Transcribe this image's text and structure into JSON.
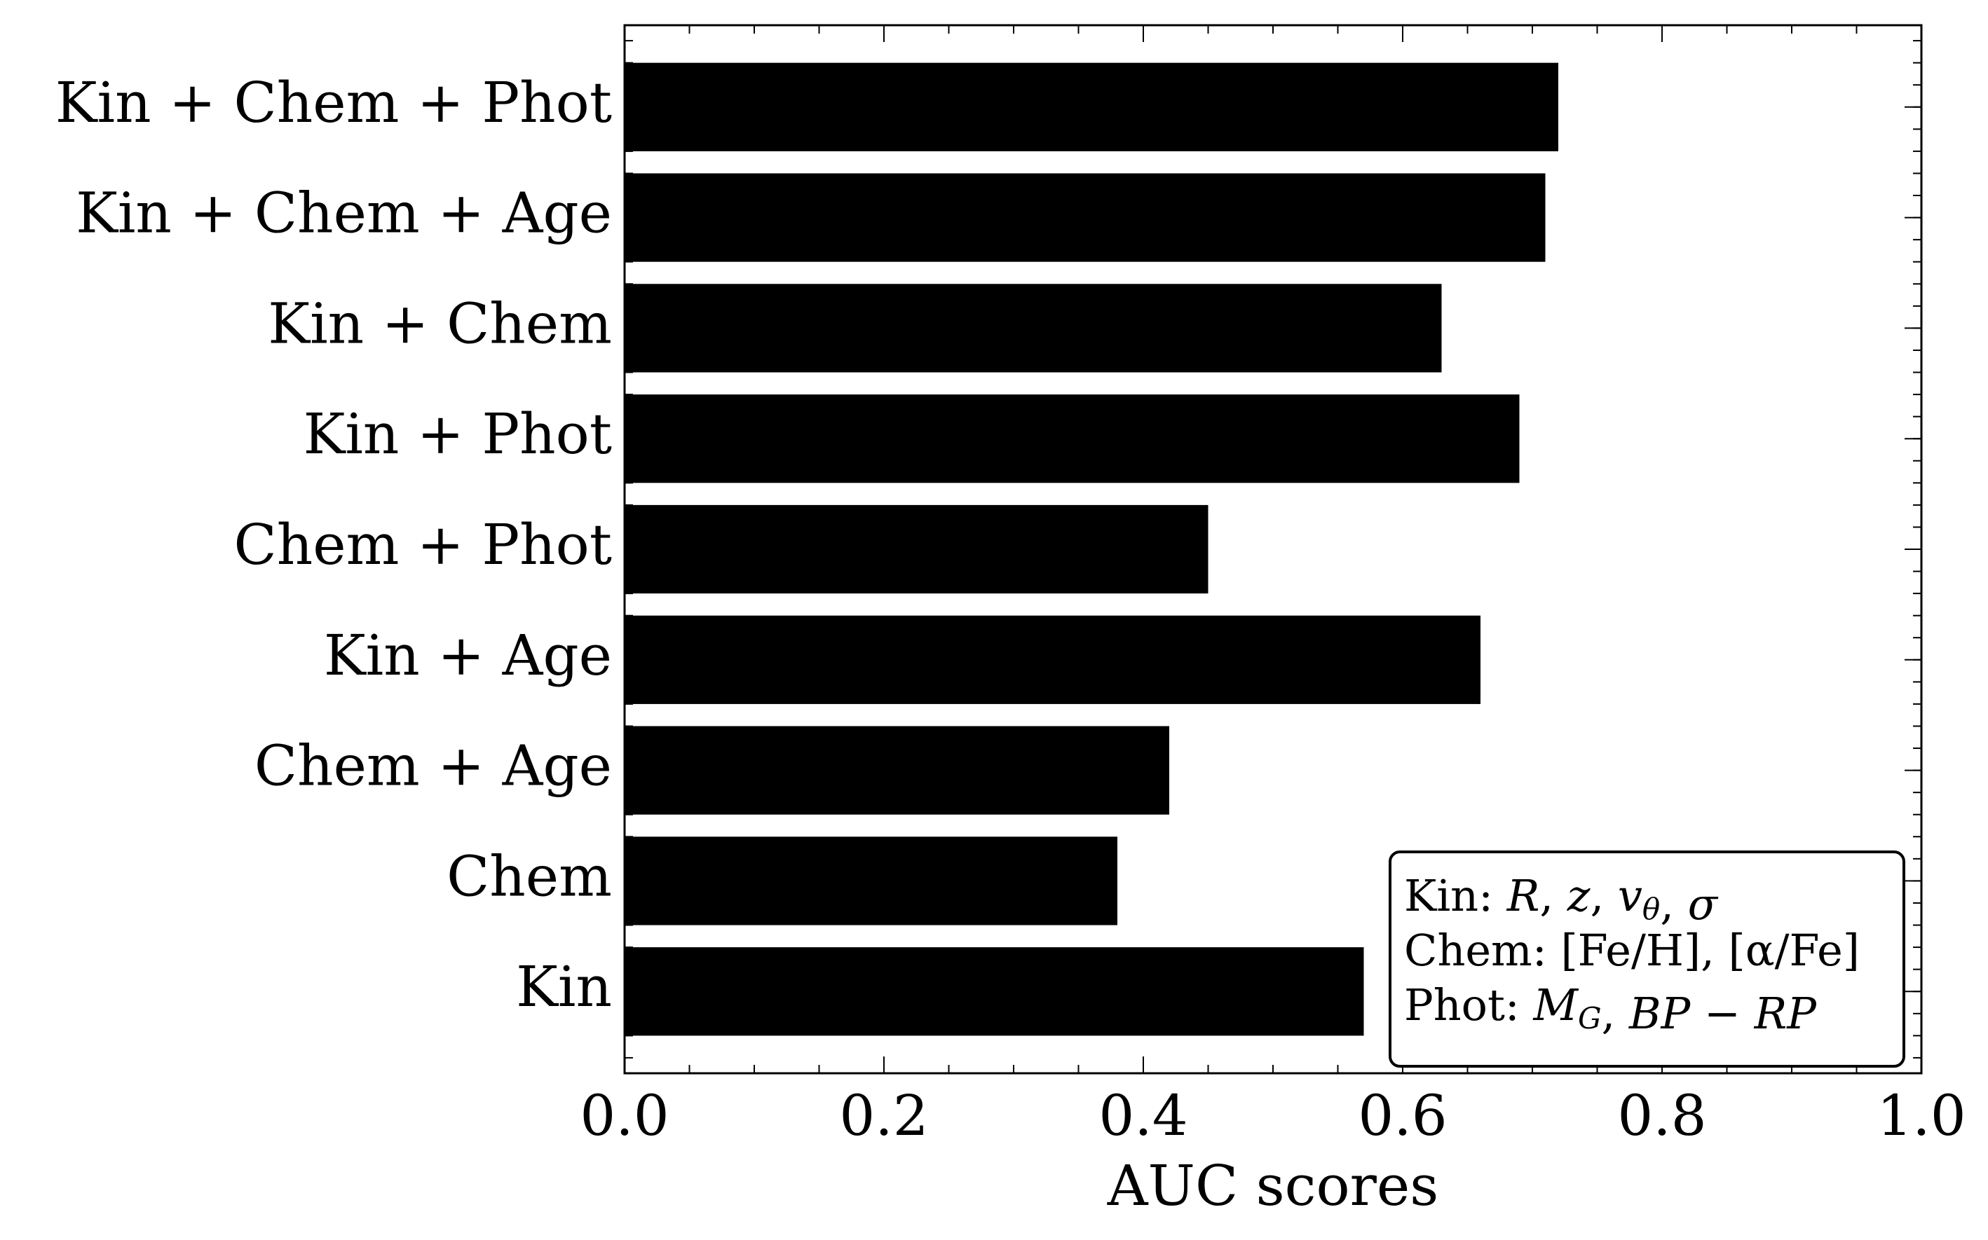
{
  "chart_data": {
    "type": "bar",
    "orientation": "horizontal",
    "categories": [
      "Kin + Chem + Phot",
      "Kin + Chem + Age",
      "Kin + Chem",
      "Kin + Phot",
      "Chem + Phot",
      "Kin + Age",
      "Chem + Age",
      "Chem",
      "Kin"
    ],
    "values": [
      0.72,
      0.71,
      0.63,
      0.69,
      0.45,
      0.66,
      0.42,
      0.38,
      0.57
    ],
    "xlabel": "AUC scores",
    "ylabel": "",
    "title": "",
    "xlim": [
      0.0,
      1.0
    ],
    "xticks": [
      "0.0",
      "0.2",
      "0.4",
      "0.6",
      "0.8",
      "1.0"
    ],
    "bar_color": "#000000",
    "grid": false,
    "legend": {
      "placement": "bottom-right",
      "lines": [
        {
          "prefix": "Kin: ",
          "parts": [
            {
              "text": "R",
              "italic": true
            },
            {
              "text": ", ",
              "italic": false
            },
            {
              "text": "z",
              "italic": true
            },
            {
              "text": ", ",
              "italic": false
            },
            {
              "text": "v",
              "italic": true
            },
            {
              "text": "θ",
              "italic": true,
              "sub": true
            },
            {
              "text": ", ",
              "italic": false
            },
            {
              "text": "σ",
              "italic": true
            }
          ]
        },
        {
          "prefix": "Chem: ",
          "parts": [
            {
              "text": "[Fe/H], [α/Fe]",
              "italic": false
            }
          ]
        },
        {
          "prefix": "Phot: ",
          "parts": [
            {
              "text": "M",
              "italic": true
            },
            {
              "text": "G",
              "italic": true,
              "sub": true
            },
            {
              "text": ", ",
              "italic": false
            },
            {
              "text": "BP",
              "italic": true
            },
            {
              "text": " − ",
              "italic": false
            },
            {
              "text": "RP",
              "italic": true
            }
          ]
        }
      ]
    }
  }
}
